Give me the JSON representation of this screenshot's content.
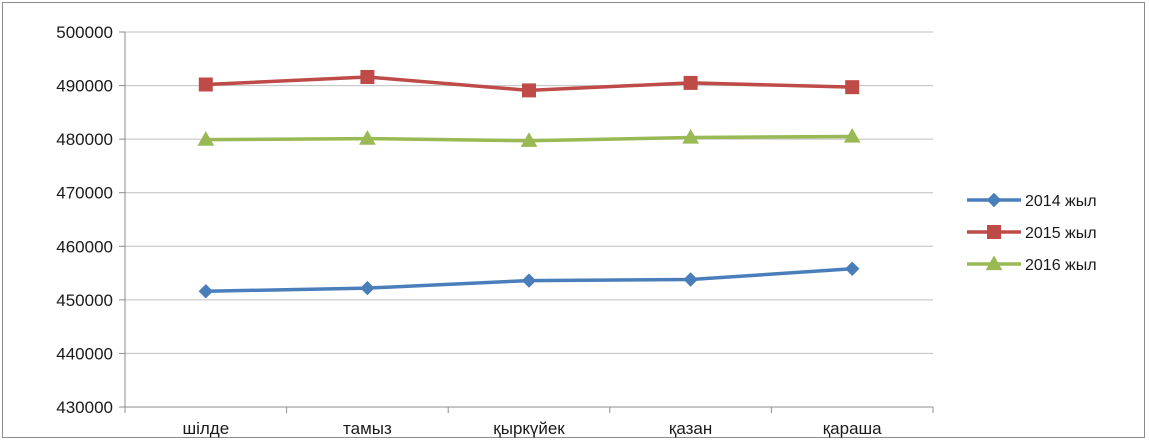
{
  "chart_data": {
    "type": "line",
    "title": "",
    "xlabel": "",
    "ylabel": "",
    "categories": [
      "шілде",
      "тамыз",
      "қыркүйек",
      "қазан",
      "қараша"
    ],
    "ylim": [
      430000,
      500000
    ],
    "yticks": [
      "430000",
      "440000",
      "450000",
      "460000",
      "470000",
      "480000",
      "490000",
      "500000"
    ],
    "grid": true,
    "legend_position": "right",
    "series": [
      {
        "name": "2014 жыл",
        "color": "#4a7ebb",
        "marker": "diamond",
        "values": [
          451600,
          452200,
          453600,
          453800,
          455800
        ]
      },
      {
        "name": "2015 жыл",
        "color": "#be4b48",
        "marker": "square",
        "values": [
          490200,
          491600,
          489100,
          490500,
          489700
        ]
      },
      {
        "name": "2016 жыл",
        "color": "#98b954",
        "marker": "triangle",
        "values": [
          479900,
          480100,
          479700,
          480300,
          480500
        ]
      }
    ]
  }
}
